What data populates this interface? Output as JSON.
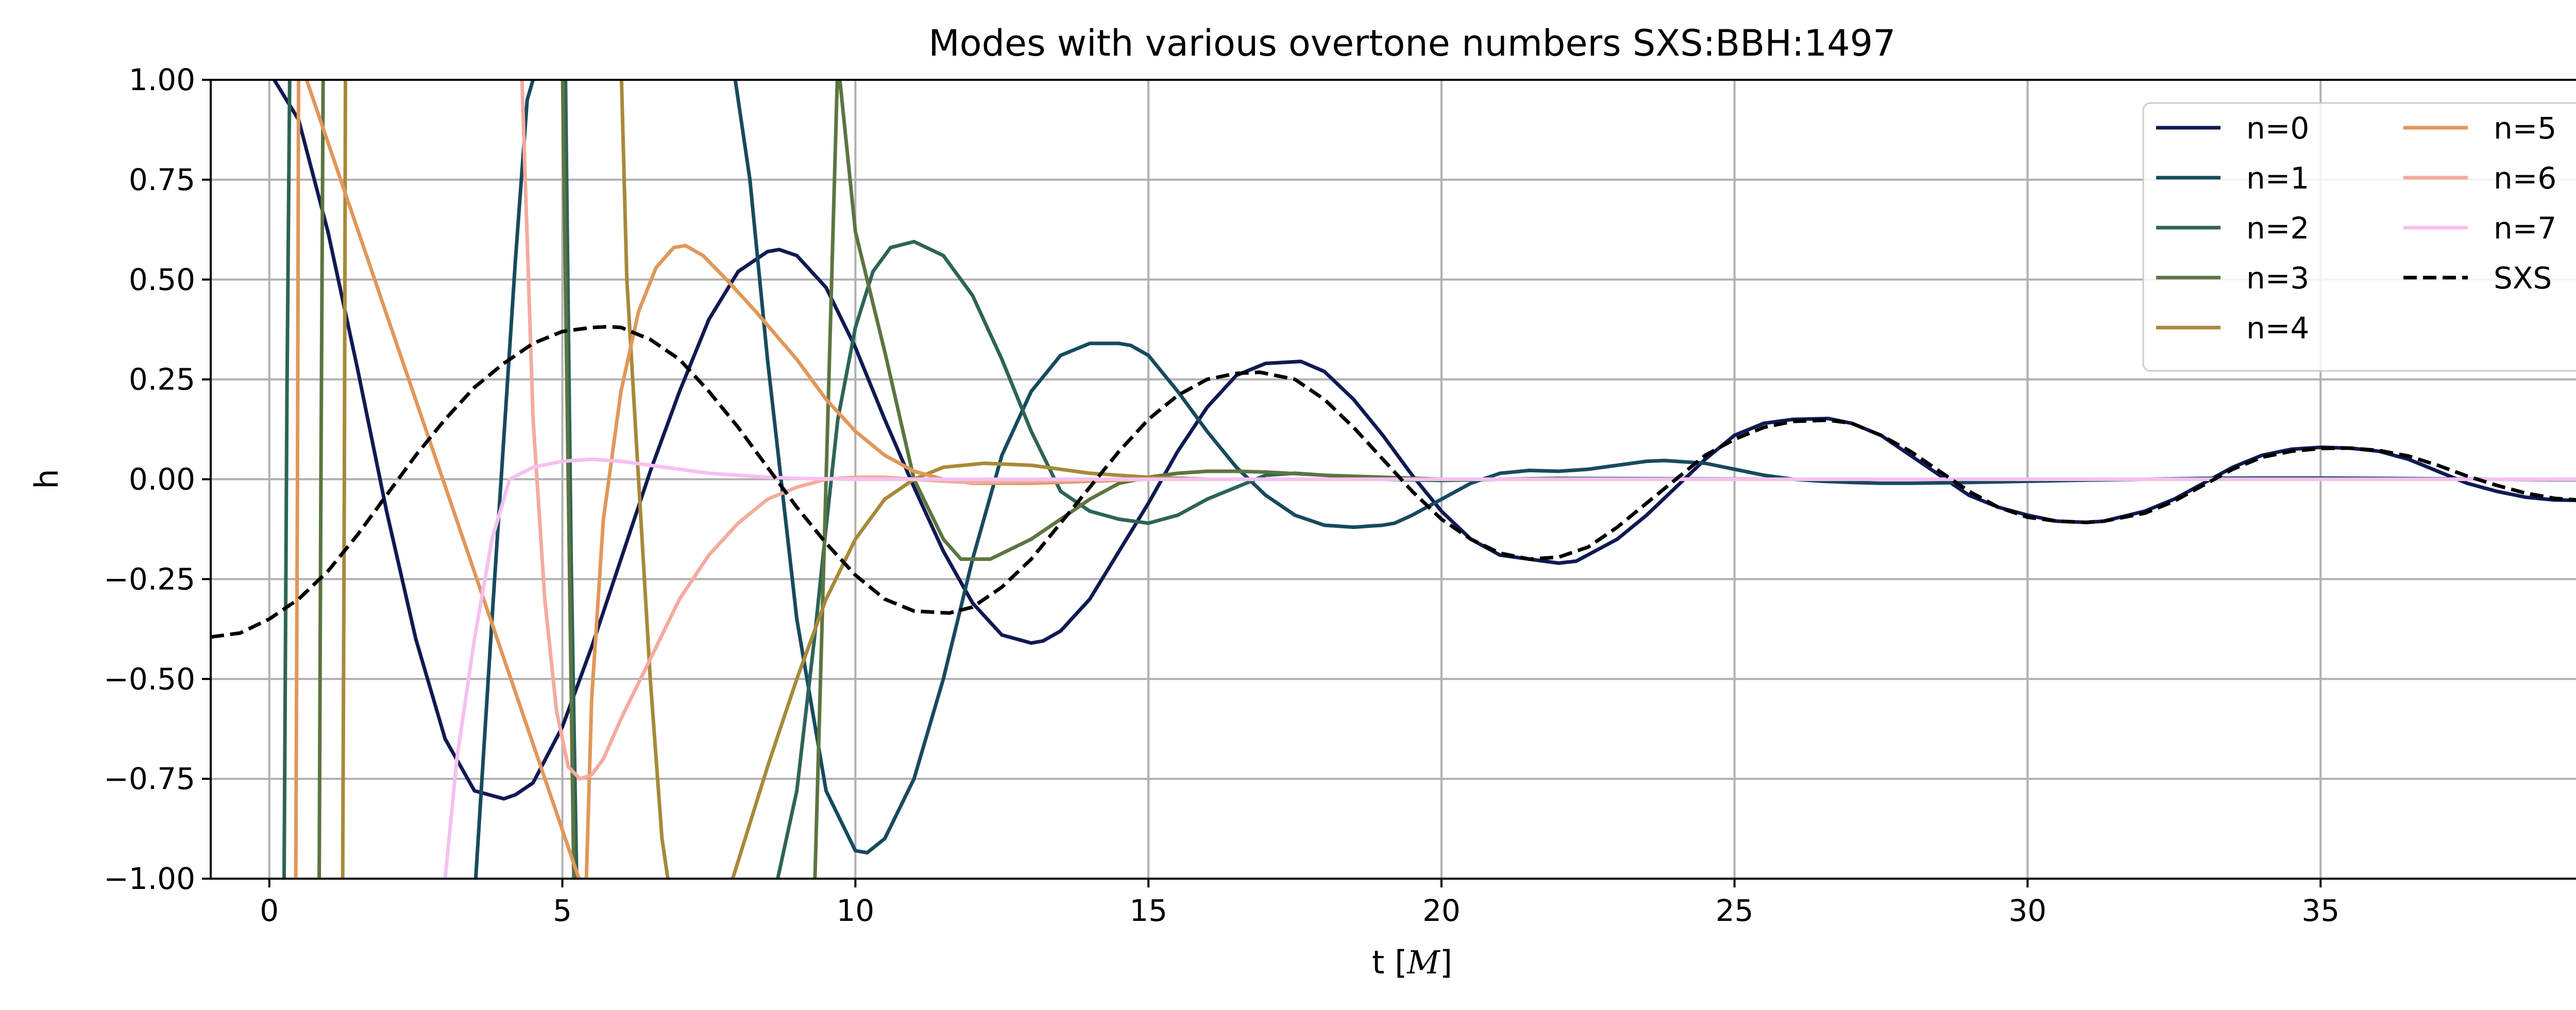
{
  "chart_data": {
    "type": "line",
    "title": "Modes with various overtone numbers SXS:BBH:1497",
    "xlabel": "t [",
    "xlabel_math": "M",
    "xlabel_close": "]",
    "ylabel": "h",
    "xlim": [
      -1,
      40
    ],
    "ylim": [
      -1.0,
      1.0
    ],
    "xticks": [
      0,
      5,
      10,
      15,
      20,
      25,
      30,
      35,
      40
    ],
    "xtick_labels": [
      "0",
      "5",
      "10",
      "15",
      "20",
      "25",
      "30",
      "35",
      "40"
    ],
    "yticks": [
      1.0,
      0.75,
      0.5,
      0.25,
      0.0,
      -0.25,
      -0.5,
      -0.75,
      -1.0
    ],
    "ytick_labels": [
      "1.00",
      "0.75",
      "0.50",
      "0.25",
      "0.00",
      "−0.25",
      "−0.50",
      "−0.75",
      "−1.00"
    ],
    "grid": true,
    "legend_position": "top-right",
    "legend_columns": 2,
    "series": [
      {
        "name": "n=0",
        "color": "#0f1a52",
        "dash": false,
        "x": [
          0.0,
          0.5,
          1.0,
          1.5,
          2.0,
          2.5,
          3.0,
          3.5,
          4.0,
          4.2,
          4.5,
          5.0,
          5.5,
          6.0,
          6.5,
          7.0,
          7.5,
          8.0,
          8.5,
          8.7,
          9.0,
          9.5,
          10.0,
          10.5,
          11.0,
          11.5,
          12.0,
          12.5,
          13.0,
          13.2,
          13.5,
          14.0,
          14.5,
          15.0,
          15.5,
          16.0,
          16.5,
          17.0,
          17.6,
          18.0,
          18.5,
          19.0,
          19.5,
          20.0,
          20.5,
          21.0,
          21.5,
          22.0,
          22.3,
          23.0,
          23.5,
          24.0,
          24.5,
          25.0,
          25.5,
          26.0,
          26.6,
          27.0,
          27.5,
          28.0,
          28.5,
          29.0,
          29.5,
          30.0,
          30.5,
          31.0,
          31.3,
          32.0,
          32.5,
          33.0,
          33.5,
          34.0,
          34.5,
          35.0,
          35.5,
          36.0,
          36.5,
          37.0,
          37.5,
          38.0,
          38.5,
          39.0,
          39.5,
          40.0
        ],
        "y": [
          1.02,
          0.9,
          0.62,
          0.28,
          -0.08,
          -0.4,
          -0.65,
          -0.78,
          -0.8,
          -0.79,
          -0.76,
          -0.62,
          -0.42,
          -0.2,
          0.02,
          0.22,
          0.4,
          0.52,
          0.57,
          0.575,
          0.56,
          0.48,
          0.33,
          0.15,
          -0.02,
          -0.18,
          -0.31,
          -0.39,
          -0.41,
          -0.405,
          -0.38,
          -0.3,
          -0.18,
          -0.06,
          0.07,
          0.18,
          0.26,
          0.29,
          0.295,
          0.27,
          0.2,
          0.11,
          0.01,
          -0.08,
          -0.15,
          -0.19,
          -0.2,
          -0.21,
          -0.205,
          -0.15,
          -0.09,
          -0.02,
          0.05,
          0.11,
          0.14,
          0.15,
          0.152,
          0.14,
          0.11,
          0.06,
          0.01,
          -0.04,
          -0.07,
          -0.09,
          -0.105,
          -0.108,
          -0.105,
          -0.08,
          -0.05,
          -0.01,
          0.03,
          0.06,
          0.075,
          0.08,
          0.078,
          0.07,
          0.05,
          0.02,
          -0.01,
          -0.03,
          -0.045,
          -0.052,
          -0.053,
          -0.052
        ]
      },
      {
        "name": "n=1",
        "color": "#174a5f",
        "dash": false,
        "x": [
          3.5,
          3.8,
          4.2,
          4.4,
          4.6,
          5.0,
          5.5,
          6.0,
          6.4,
          7.0,
          7.5,
          7.9,
          8.2,
          8.5,
          9.0,
          9.5,
          10.0,
          10.2,
          10.5,
          11.0,
          11.5,
          12.0,
          12.5,
          13.0,
          13.5,
          14.0,
          14.5,
          14.7,
          15.0,
          15.5,
          16.0,
          16.5,
          17.0,
          17.5,
          18.0,
          18.5,
          19.0,
          19.2,
          19.5,
          20.0,
          20.5,
          21.0,
          21.5,
          22.0,
          22.5,
          23.0,
          23.5,
          23.8,
          24.5,
          25.0,
          25.5,
          26.0,
          26.5,
          27.0,
          27.5,
          28.0,
          29.0,
          30.0,
          31.0,
          32.0,
          33.0,
          34.0,
          35.0,
          36.0,
          37.0,
          38.0,
          39.0,
          40.0
        ],
        "y": [
          -1.05,
          -0.35,
          0.55,
          0.95,
          1.05,
          1.05,
          1.05,
          1.05,
          1.05,
          1.05,
          1.05,
          1.05,
          0.75,
          0.3,
          -0.35,
          -0.78,
          -0.93,
          -0.935,
          -0.9,
          -0.75,
          -0.5,
          -0.2,
          0.06,
          0.22,
          0.31,
          0.34,
          0.34,
          0.335,
          0.31,
          0.22,
          0.12,
          0.03,
          -0.04,
          -0.09,
          -0.115,
          -0.12,
          -0.115,
          -0.11,
          -0.09,
          -0.05,
          -0.01,
          0.015,
          0.022,
          0.02,
          0.025,
          0.035,
          0.045,
          0.047,
          0.04,
          0.025,
          0.01,
          0.0,
          -0.005,
          -0.008,
          -0.01,
          -0.01,
          -0.008,
          -0.005,
          -0.002,
          0.0,
          0.002,
          0.003,
          0.003,
          0.002,
          0.001,
          0.0,
          -0.001,
          -0.001
        ]
      },
      {
        "name": "n=2",
        "color": "#2d6457",
        "dash": false,
        "x": [
          0.25,
          0.3,
          0.35,
          0.45,
          4.9,
          5.05,
          5.15,
          5.25,
          6.0,
          7.0,
          8.0,
          8.6,
          9.0,
          9.3,
          9.5,
          9.7,
          10.0,
          10.3,
          10.6,
          11.0,
          11.5,
          12.0,
          12.5,
          13.0,
          13.5,
          14.0,
          14.5,
          15.0,
          15.5,
          16.0,
          16.5,
          17.0,
          17.5,
          18.0,
          18.5,
          19.0,
          20.0,
          21.0,
          22.0,
          24.0,
          26.0,
          28.0,
          30.0,
          35.0,
          40.0
        ],
        "y": [
          -1.05,
          0.2,
          1.05,
          1.05,
          1.05,
          1.05,
          -0.2,
          -1.05,
          -1.05,
          -1.05,
          -1.05,
          -1.05,
          -0.78,
          -0.4,
          -0.12,
          0.15,
          0.38,
          0.52,
          0.58,
          0.595,
          0.56,
          0.46,
          0.3,
          0.12,
          -0.03,
          -0.08,
          -0.1,
          -0.11,
          -0.09,
          -0.05,
          -0.02,
          0.01,
          0.015,
          0.01,
          0.005,
          0.0,
          -0.003,
          0.0,
          0.002,
          0.001,
          0.0,
          0.0,
          0.0,
          0.0,
          0.0
        ]
      },
      {
        "name": "n=3",
        "color": "#5c7540",
        "dash": false,
        "x": [
          0.85,
          0.88,
          0.92,
          0.95,
          4.95,
          5.0,
          5.1,
          5.2,
          8.7,
          9.0,
          9.3,
          9.7,
          10.0,
          10.5,
          11.0,
          11.5,
          11.8,
          12.3,
          13.0,
          13.5,
          14.0,
          14.5,
          15.0,
          15.5,
          16.0,
          16.5,
          17.0,
          18.0,
          19.0,
          20.0,
          22.0,
          25.0,
          30.0,
          35.0,
          40.0
        ],
        "y": [
          -1.05,
          0.0,
          1.05,
          1.05,
          1.05,
          1.05,
          0.0,
          -1.05,
          -1.05,
          -1.05,
          -1.05,
          1.05,
          0.62,
          0.32,
          0.0,
          -0.15,
          -0.2,
          -0.2,
          -0.15,
          -0.1,
          -0.05,
          -0.01,
          0.005,
          0.015,
          0.02,
          0.02,
          0.018,
          0.01,
          0.005,
          0.0,
          0.0,
          0.0,
          0.0,
          0.0,
          0.0
        ]
      },
      {
        "name": "n=4",
        "color": "#a8893a",
        "dash": false,
        "x": [
          1.25,
          1.28,
          1.3,
          1.33,
          5.8,
          5.9,
          6.0,
          6.1,
          6.3,
          6.5,
          6.7,
          6.85,
          7.0,
          7.8,
          8.5,
          9.0,
          9.5,
          10.0,
          10.5,
          11.0,
          11.5,
          12.2,
          13.0,
          13.5,
          14.0,
          15.0,
          16.0,
          18.0,
          20.0,
          25.0,
          30.0,
          35.0,
          40.0
        ],
        "y": [
          -1.05,
          0.0,
          1.05,
          1.05,
          1.05,
          1.05,
          1.05,
          0.5,
          0.0,
          -0.5,
          -0.9,
          -1.05,
          -1.05,
          -1.05,
          -0.72,
          -0.5,
          -0.3,
          -0.15,
          -0.05,
          0.0,
          0.03,
          0.04,
          0.035,
          0.025,
          0.015,
          0.005,
          0.0,
          0.0,
          0.0,
          0.0,
          0.0,
          0.0,
          0.0
        ]
      },
      {
        "name": "n=5",
        "color": "#e0975a",
        "dash": false,
        "x": [
          0.45,
          0.48,
          0.5,
          0.52,
          5.4,
          5.5,
          5.7,
          6.0,
          6.3,
          6.6,
          6.9,
          7.1,
          7.4,
          7.8,
          8.3,
          9.0,
          9.5,
          10.0,
          10.5,
          11.0,
          11.5,
          12.0,
          13.0,
          14.0,
          15.0,
          16.0,
          18.0,
          20.0,
          25.0,
          30.0,
          35.0,
          40.0
        ],
        "y": [
          -1.05,
          0.0,
          1.05,
          1.05,
          -1.05,
          -0.55,
          -0.1,
          0.22,
          0.42,
          0.53,
          0.58,
          0.585,
          0.56,
          0.5,
          0.42,
          0.3,
          0.2,
          0.12,
          0.06,
          0.02,
          0.0,
          -0.01,
          -0.01,
          -0.005,
          0.0,
          0.0,
          0.0,
          0.0,
          0.0,
          0.0,
          0.0,
          0.0
        ]
      },
      {
        "name": "n=6",
        "color": "#f4ab9e",
        "dash": false,
        "x": [
          4.3,
          4.4,
          4.5,
          4.7,
          4.9,
          5.1,
          5.3,
          5.5,
          5.7,
          6.0,
          6.5,
          7.0,
          7.5,
          8.0,
          8.5,
          9.0,
          9.5,
          10.0,
          10.5,
          11.0,
          11.5,
          12.0,
          13.0,
          14.0,
          15.0,
          16.0,
          18.0,
          20.0,
          25.0,
          30.0,
          35.0,
          40.0
        ],
        "y": [
          1.05,
          0.6,
          0.15,
          -0.3,
          -0.58,
          -0.72,
          -0.75,
          -0.74,
          -0.7,
          -0.6,
          -0.45,
          -0.3,
          -0.19,
          -0.11,
          -0.05,
          -0.02,
          0.0,
          0.005,
          0.005,
          0.0,
          -0.005,
          -0.008,
          -0.005,
          -0.002,
          0.0,
          0.0,
          0.0,
          0.0,
          0.0,
          0.0,
          0.0,
          0.0
        ]
      },
      {
        "name": "n=7",
        "color": "#f5c0f0",
        "dash": false,
        "x": [
          3.0,
          3.2,
          3.5,
          3.8,
          4.1,
          4.5,
          5.0,
          5.5,
          6.0,
          6.5,
          7.0,
          7.5,
          8.0,
          8.5,
          9.0,
          10.0,
          11.0,
          12.0,
          14.0,
          16.0,
          20.0,
          25.0,
          30.0,
          35.0,
          40.0
        ],
        "y": [
          -1.0,
          -0.7,
          -0.4,
          -0.15,
          0.0,
          0.03,
          0.045,
          0.05,
          0.045,
          0.035,
          0.025,
          0.015,
          0.01,
          0.005,
          0.002,
          0.0,
          0.0,
          0.0,
          0.0,
          0.0,
          0.0,
          0.0,
          0.0,
          0.0,
          0.0
        ]
      },
      {
        "name": "SXS",
        "color": "#000000",
        "dash": true,
        "x": [
          -1.0,
          -0.5,
          0.0,
          0.5,
          1.0,
          1.5,
          2.0,
          2.5,
          3.0,
          3.5,
          4.0,
          4.5,
          5.0,
          5.5,
          5.8,
          6.0,
          6.5,
          7.0,
          7.5,
          8.0,
          8.5,
          9.0,
          9.5,
          10.0,
          10.5,
          11.0,
          11.6,
          12.0,
          12.5,
          13.0,
          13.5,
          14.0,
          14.5,
          15.0,
          15.5,
          16.0,
          16.5,
          16.9,
          17.5,
          18.0,
          18.5,
          19.0,
          19.5,
          20.0,
          20.5,
          21.0,
          21.5,
          22.0,
          22.5,
          23.0,
          23.5,
          24.0,
          24.5,
          25.0,
          25.5,
          26.0,
          26.6,
          27.0,
          27.5,
          28.0,
          28.5,
          29.0,
          29.5,
          30.0,
          30.5,
          31.0,
          31.3,
          32.0,
          32.5,
          33.0,
          33.5,
          34.0,
          34.5,
          35.0,
          35.5,
          36.0,
          36.5,
          37.0,
          37.5,
          38.0,
          38.5,
          39.0,
          39.5,
          40.0
        ],
        "y": [
          -0.395,
          -0.385,
          -0.35,
          -0.3,
          -0.23,
          -0.14,
          -0.04,
          0.06,
          0.15,
          0.23,
          0.29,
          0.34,
          0.37,
          0.38,
          0.382,
          0.38,
          0.35,
          0.3,
          0.22,
          0.13,
          0.03,
          -0.07,
          -0.16,
          -0.24,
          -0.3,
          -0.33,
          -0.335,
          -0.32,
          -0.27,
          -0.2,
          -0.11,
          -0.02,
          0.07,
          0.15,
          0.21,
          0.25,
          0.265,
          0.268,
          0.25,
          0.2,
          0.13,
          0.05,
          -0.03,
          -0.1,
          -0.15,
          -0.185,
          -0.2,
          -0.195,
          -0.17,
          -0.12,
          -0.06,
          0.0,
          0.06,
          0.1,
          0.13,
          0.145,
          0.148,
          0.14,
          0.11,
          0.07,
          0.02,
          -0.03,
          -0.07,
          -0.095,
          -0.105,
          -0.108,
          -0.105,
          -0.085,
          -0.055,
          -0.015,
          0.025,
          0.055,
          0.07,
          0.077,
          0.078,
          0.072,
          0.058,
          0.035,
          0.008,
          -0.015,
          -0.035,
          -0.048,
          -0.053,
          -0.055
        ]
      }
    ]
  }
}
